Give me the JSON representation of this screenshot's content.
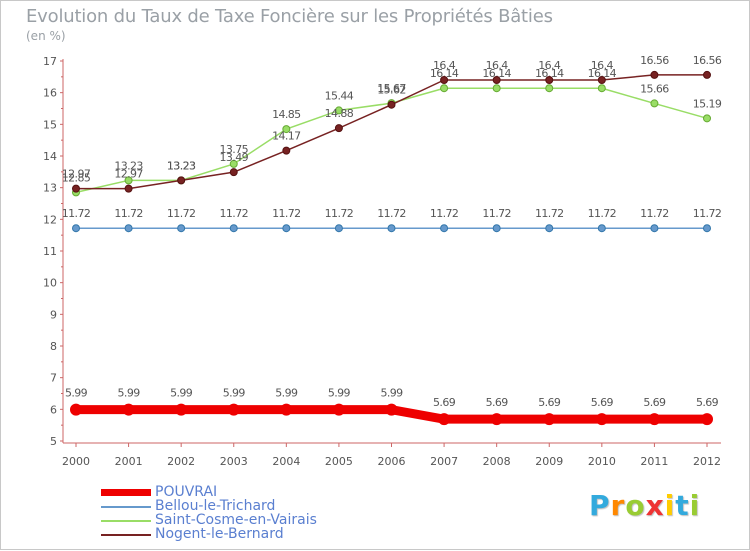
{
  "chart_data": {
    "type": "line",
    "title": "Evolution du Taux de Taxe Foncière sur les Propriétés Bâties",
    "unit_label": "(en %)",
    "x": [
      "2000",
      "2001",
      "2002",
      "2003",
      "2004",
      "2005",
      "2006",
      "2007",
      "2008",
      "2009",
      "2010",
      "2011",
      "2012"
    ],
    "ylim": [
      5,
      17
    ],
    "yticks": [
      "5",
      "6",
      "7",
      "8",
      "9",
      "10",
      "11",
      "12",
      "13",
      "14",
      "15",
      "16",
      "17"
    ],
    "grid": false,
    "legend_position": "bottom-left",
    "series": [
      {
        "name": "POUVRAI",
        "color": "#ee0000",
        "values": [
          5.99,
          5.99,
          5.99,
          5.99,
          5.99,
          5.99,
          5.99,
          5.69,
          5.69,
          5.69,
          5.69,
          5.69,
          5.69
        ],
        "labels": [
          "5.99",
          "5.99",
          "5.99",
          "5.99",
          "5.99",
          "5.99",
          "5.99",
          "5.69",
          "5.69",
          "5.69",
          "5.69",
          "5.69",
          "5.69"
        ]
      },
      {
        "name": "Bellou-le-Trichard",
        "color": "#6699cc",
        "values": [
          11.72,
          11.72,
          11.72,
          11.72,
          11.72,
          11.72,
          11.72,
          11.72,
          11.72,
          11.72,
          11.72,
          11.72,
          11.72
        ],
        "labels": [
          "11.72",
          "11.72",
          "11.72",
          "11.72",
          "11.72",
          "11.72",
          "11.72",
          "11.72",
          "11.72",
          "11.72",
          "11.72",
          "11.72",
          "11.72"
        ]
      },
      {
        "name": "Saint-Cosme-en-Vairais",
        "color": "#99dd66",
        "values": [
          12.85,
          13.23,
          13.23,
          13.75,
          14.85,
          15.44,
          15.67,
          16.14,
          16.14,
          16.14,
          16.14,
          15.66,
          15.19
        ],
        "labels": [
          "12.85",
          "13.23",
          "13.23",
          "13.75",
          "14.85",
          "15.44",
          "15.67",
          "16.14",
          "16.14",
          "16.14",
          "16.14",
          "15.66",
          "15.19"
        ]
      },
      {
        "name": "Nogent-le-Bernard",
        "color": "#772222",
        "values": [
          12.97,
          12.97,
          13.23,
          13.49,
          14.17,
          14.88,
          15.62,
          16.4,
          16.4,
          16.4,
          16.4,
          16.56,
          16.56
        ],
        "labels": [
          "12.97",
          "12.97",
          "13.23",
          "13.49",
          "14.17",
          "14.88",
          "15.62",
          "16.4",
          "16.4",
          "16.4",
          "16.4",
          "16.56",
          "16.56"
        ]
      }
    ]
  },
  "logo": {
    "letters": [
      "P",
      "r",
      "o",
      "x",
      "i",
      "t",
      "i"
    ],
    "colors": [
      "#33aadd",
      "#ff8800",
      "#99cc33",
      "#ee3333",
      "#ffcc00",
      "#33aadd",
      "#99cc33"
    ]
  }
}
